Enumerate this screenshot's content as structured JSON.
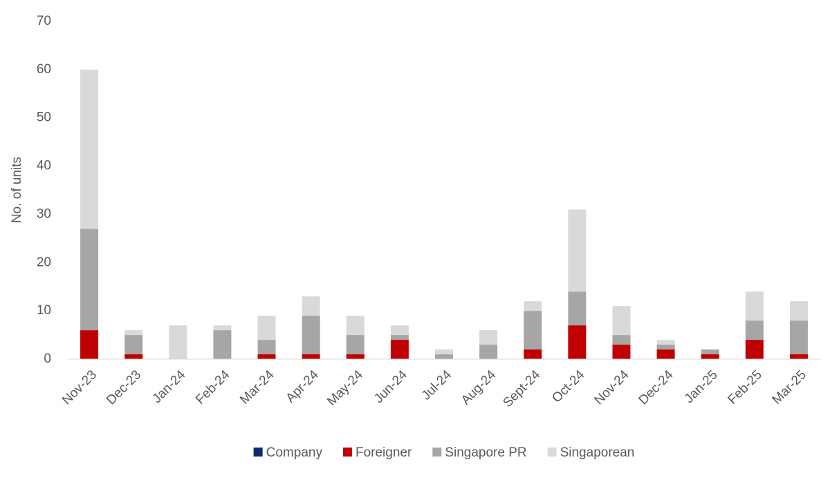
{
  "chart_data": {
    "type": "stacked_bar",
    "y_label": "No. of units",
    "categories": [
      "Nov-23",
      "Dec-23",
      "Jan-24",
      "Feb-24",
      "Mar-24",
      "Apr-24",
      "May-24",
      "Jun-24",
      "Jul-24",
      "Aug-24",
      "Sept-24",
      "Oct-24",
      "Nov-24",
      "Dec-24",
      "Jan-25",
      "Feb-25",
      "Mar-25"
    ],
    "series": [
      {
        "name": "Company",
        "color": "#0d2a6b",
        "values": [
          0,
          0,
          0,
          0,
          0,
          0,
          0,
          0,
          0,
          0,
          0,
          0,
          0,
          0,
          0,
          0,
          0
        ]
      },
      {
        "name": "Foreigner",
        "color": "#c00000",
        "values": [
          6,
          1,
          0,
          0,
          1,
          1,
          1,
          4,
          0,
          0,
          2,
          7,
          3,
          2,
          1,
          4,
          1
        ]
      },
      {
        "name": "Singapore PR",
        "color": "#a6a6a6",
        "values": [
          21,
          4,
          0,
          6,
          3,
          8,
          4,
          1,
          1,
          3,
          8,
          7,
          2,
          1,
          1,
          4,
          7
        ]
      },
      {
        "name": "Singaporean",
        "color": "#d9d9d9",
        "values": [
          33,
          1,
          7,
          1,
          5,
          4,
          4,
          2,
          1,
          3,
          2,
          17,
          6,
          1,
          0,
          6,
          4
        ]
      }
    ],
    "ylim": [
      0,
      70
    ],
    "yticks": [
      0,
      10,
      20,
      30,
      40,
      50,
      60,
      70
    ],
    "grid": false,
    "legend": "bottom"
  }
}
